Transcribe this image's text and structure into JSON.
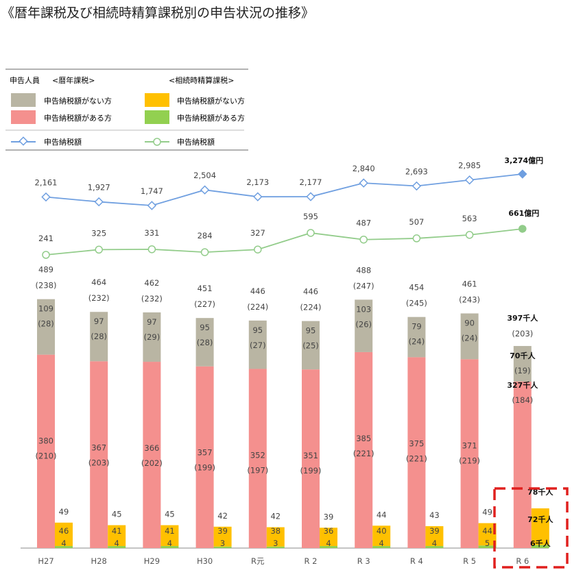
{
  "title": "《暦年課税及び相続時精算課税別の申告状況の推移》",
  "legend": {
    "people": "申告人員",
    "rekinen": "<暦年課税>",
    "sozoku": "<相続時精算課税>",
    "r_none": "申告納税額がない方",
    "r_with": "申告納税額がある方",
    "s_none": "申告納税額がない方",
    "s_with": "申告納税額がある方",
    "r_line": "申告納税額",
    "s_line": "申告納税額"
  },
  "colors": {
    "r_none": "#b9b5a3",
    "r_with": "#f4908e",
    "s_none": "#ffc000",
    "s_with": "#92d050",
    "blue": "#6f9fe0",
    "green": "#92cc8a",
    "highlight": "#e0201e"
  },
  "chart_data": {
    "type": "bar",
    "categories": [
      "H27",
      "H28",
      "H29",
      "H30",
      "R元",
      "R 2",
      "R 3",
      "R 4",
      "R 5",
      "R 6"
    ],
    "rekinen_total": [
      "489",
      "464",
      "462",
      "451",
      "446",
      "446",
      "488",
      "454",
      "461",
      "397千人"
    ],
    "rekinen_total_paren": [
      "(238)",
      "(232)",
      "(232)",
      "(227)",
      "(224)",
      "(224)",
      "(247)",
      "(245)",
      "(243)",
      "(203)"
    ],
    "series": [
      {
        "name": "申告納税額がない方",
        "group": "暦年課税",
        "values": [
          109,
          97,
          97,
          95,
          95,
          95,
          103,
          79,
          90,
          70
        ],
        "labels": [
          "109",
          "97",
          "97",
          "95",
          "95",
          "95",
          "103",
          "79",
          "90",
          "70千人"
        ],
        "paren": [
          "(28)",
          "(28)",
          "(29)",
          "(28)",
          "(27)",
          "(25)",
          "(26)",
          "(24)",
          "(24)",
          "(19)"
        ]
      },
      {
        "name": "申告納税額がある方",
        "group": "暦年課税",
        "values": [
          380,
          367,
          366,
          357,
          352,
          351,
          385,
          375,
          371,
          327
        ],
        "labels": [
          "380",
          "367",
          "366",
          "357",
          "352",
          "351",
          "385",
          "375",
          "371",
          "327千人"
        ],
        "paren": [
          "(210)",
          "(203)",
          "(202)",
          "(199)",
          "(197)",
          "(199)",
          "(221)",
          "(221)",
          "(219)",
          "(184)"
        ]
      },
      {
        "name": "申告納税額がない方",
        "group": "相続時精算課税",
        "values": [
          46,
          41,
          41,
          39,
          38,
          36,
          40,
          39,
          44,
          72
        ],
        "labels": [
          "46",
          "41",
          "41",
          "39",
          "38",
          "36",
          "40",
          "39",
          "44",
          "72千人"
        ]
      },
      {
        "name": "申告納税額がある方",
        "group": "相続時精算課税",
        "values": [
          4,
          4,
          4,
          3,
          3,
          4,
          4,
          4,
          5,
          6
        ],
        "labels": [
          "4",
          "4",
          "4",
          "3",
          "3",
          "4",
          "4",
          "4",
          "5",
          "6千人"
        ]
      }
    ],
    "sozoku_total": [
      "49",
      "45",
      "45",
      "42",
      "42",
      "39",
      "44",
      "43",
      "49",
      "78千人"
    ],
    "lines": [
      {
        "name": "申告納税額",
        "group": "暦年課税",
        "values": [
          2161,
          1927,
          1747,
          2504,
          2173,
          2177,
          2840,
          2693,
          2985,
          3274
        ],
        "labels": [
          "2,161",
          "1,927",
          "1,747",
          "2,504",
          "2,173",
          "2,177",
          "2,840",
          "2,693",
          "2,985",
          "3,274億円"
        ]
      },
      {
        "name": "申告納税額",
        "group": "相続時精算課税",
        "values": [
          241,
          325,
          331,
          284,
          327,
          595,
          487,
          507,
          563,
          661
        ],
        "labels": [
          "241",
          "325",
          "331",
          "284",
          "327",
          "595",
          "487",
          "507",
          "563",
          "661億円"
        ]
      }
    ]
  }
}
